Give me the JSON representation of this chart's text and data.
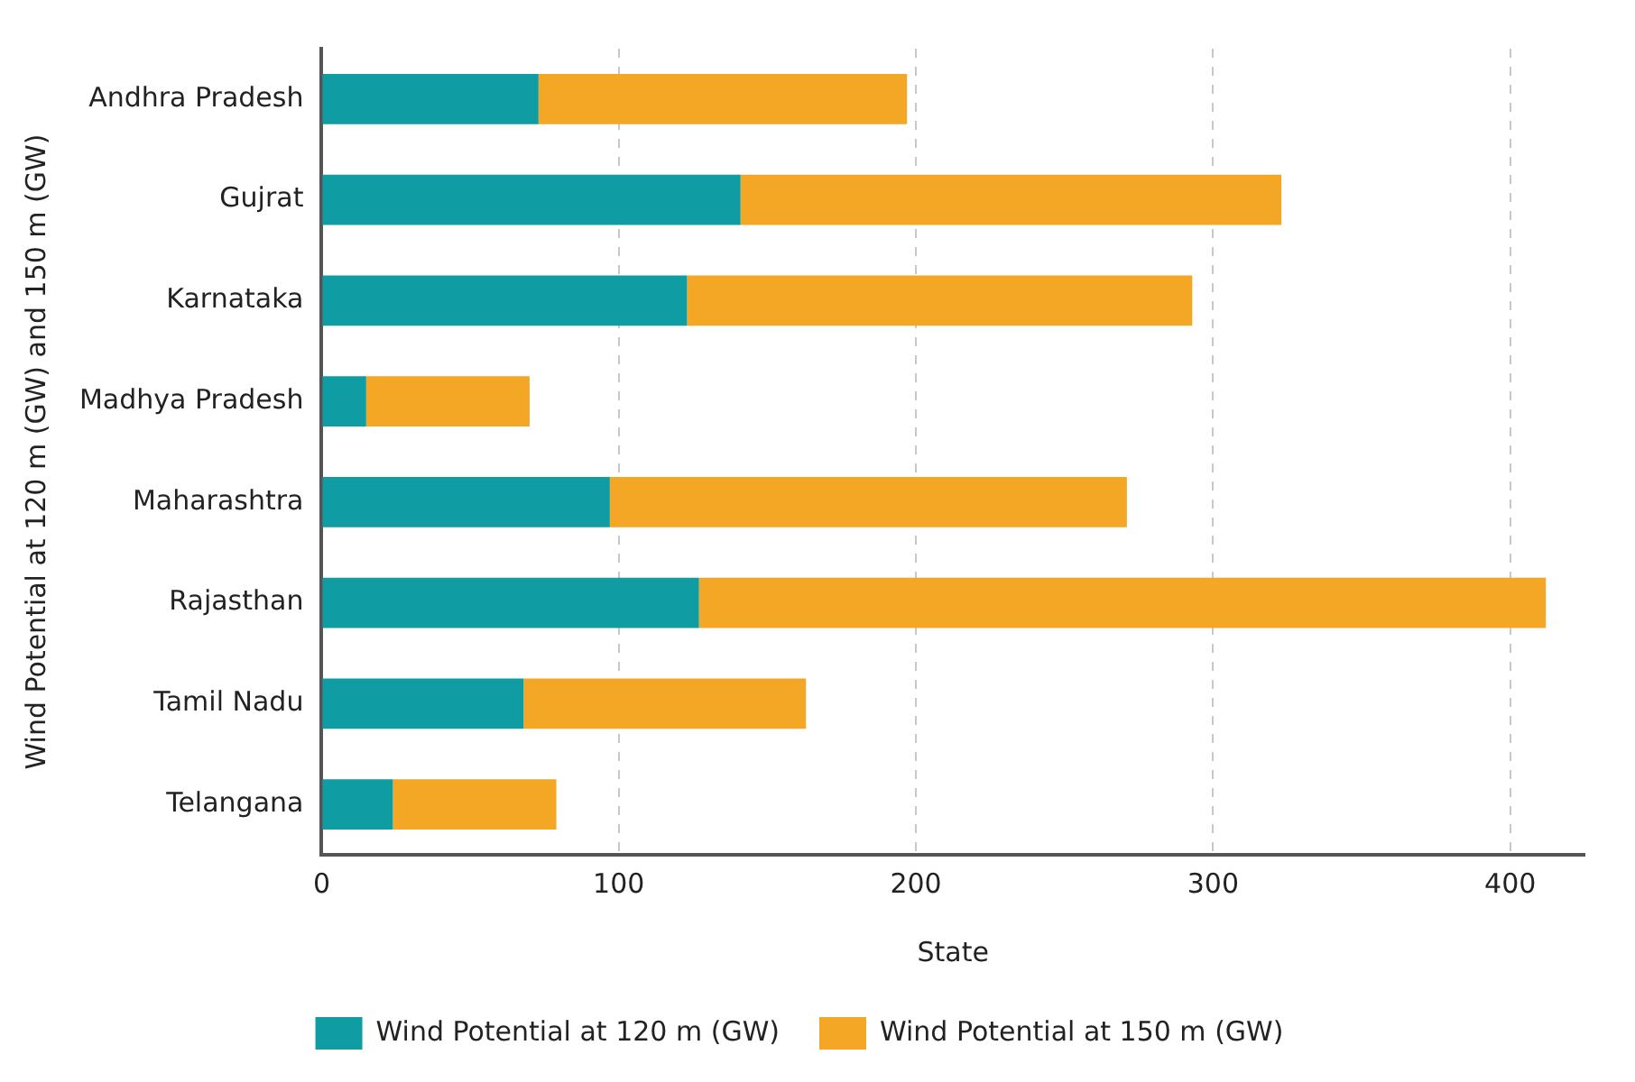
{
  "chart_data": {
    "type": "bar",
    "orientation": "horizontal",
    "stacked": true,
    "xlabel": "State",
    "ylabel": "Wind Potential at 120 m (GW) and 150 m (GW)",
    "categories": [
      "Andhra Pradesh",
      "Gujrat",
      "Karnataka",
      "Madhya Pradesh",
      "Maharashtra",
      "Rajasthan",
      "Tamil Nadu",
      "Telangana"
    ],
    "series": [
      {
        "name": "Wind Potential at 120 m (GW)",
        "color": "#0f9da3",
        "values": [
          73,
          141,
          123,
          15,
          97,
          127,
          68,
          24
        ]
      },
      {
        "name": "Wind Potential at 150 m (GW)",
        "color": "#f4a724",
        "values": [
          124,
          182,
          170,
          55,
          174,
          285,
          95,
          55
        ]
      }
    ],
    "xlim": [
      0,
      425
    ],
    "xticks": [
      0,
      100,
      200,
      300,
      400
    ],
    "grid": "x",
    "legend": "bottom"
  }
}
